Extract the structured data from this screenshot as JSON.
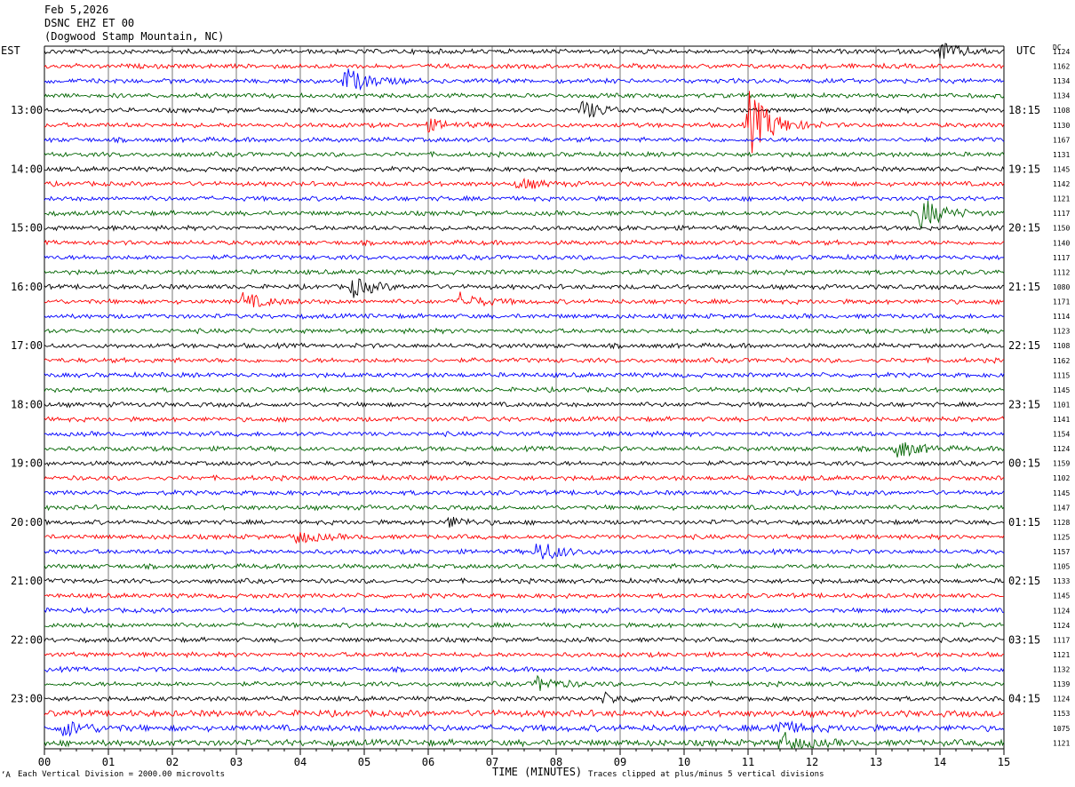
{
  "header": {
    "date": "Feb 5,2026",
    "channel": "DSNC EHZ ET 00",
    "location": "(Dogwood Stamp Mountain, NC)"
  },
  "left_tz": "EST",
  "right_tz": "UTC",
  "dc_label": "DC",
  "footer": {
    "scale": "Each Vertical Division = 2000.00 microvolts",
    "clip": "Traces clipped at plus/minus 5 vertical divisions",
    "marker": "‘A"
  },
  "chart_data": {
    "type": "line",
    "title": "DSNC EHZ ET 00",
    "xlabel": "TIME (MINUTES)",
    "x_ticks": [
      "00",
      "01",
      "02",
      "03",
      "04",
      "05",
      "06",
      "07",
      "08",
      "09",
      "10",
      "11",
      "12",
      "13",
      "14",
      "15"
    ],
    "xlim": [
      0,
      15
    ],
    "trace_colors": [
      "#000000",
      "#ff0000",
      "#0000ff",
      "#006400"
    ],
    "left_hour_labels": [
      "13:00",
      "14:00",
      "15:00",
      "16:00",
      "17:00",
      "18:00",
      "19:00",
      "20:00",
      "21:00",
      "22:00",
      "23:00"
    ],
    "right_hour_labels": [
      "18:15",
      "19:15",
      "20:15",
      "21:15",
      "22:15",
      "23:15",
      "00:15",
      "01:15",
      "02:15",
      "03:15",
      "04:15"
    ],
    "dc_values": [
      1124,
      1162,
      1134,
      1134,
      1108,
      1130,
      1167,
      1131,
      1145,
      1142,
      1121,
      1117,
      1150,
      1140,
      1117,
      1112,
      1080,
      1171,
      1114,
      1123,
      1108,
      1162,
      1115,
      1145,
      1101,
      1141,
      1154,
      1124,
      1159,
      1102,
      1145,
      1147,
      1128,
      1125,
      1157,
      1105,
      1133,
      1145,
      1124,
      1124,
      1117,
      1121,
      1132,
      1139,
      1124,
      1153,
      1075,
      1121
    ],
    "events": [
      {
        "row": 0,
        "minute": 14.0,
        "amplitude": 10
      },
      {
        "row": 2,
        "minute": 4.7,
        "amplitude": 15
      },
      {
        "row": 4,
        "minute": 8.4,
        "amplitude": 11
      },
      {
        "row": 5,
        "minute": 11.0,
        "amplitude": 40
      },
      {
        "row": 5,
        "minute": 6.0,
        "amplitude": 6
      },
      {
        "row": 9,
        "minute": 7.4,
        "amplitude": 6
      },
      {
        "row": 11,
        "minute": 13.7,
        "amplitude": 18
      },
      {
        "row": 16,
        "minute": 4.8,
        "amplitude": 11
      },
      {
        "row": 17,
        "minute": 3.1,
        "amplitude": 9
      },
      {
        "row": 17,
        "minute": 6.5,
        "amplitude": 9
      },
      {
        "row": 27,
        "minute": 13.3,
        "amplitude": 11
      },
      {
        "row": 32,
        "minute": 6.3,
        "amplitude": 6
      },
      {
        "row": 33,
        "minute": 3.9,
        "amplitude": 8
      },
      {
        "row": 34,
        "minute": 7.7,
        "amplitude": 13
      },
      {
        "row": 43,
        "minute": 7.7,
        "amplitude": 8
      },
      {
        "row": 44,
        "minute": 8.7,
        "amplitude": 6
      },
      {
        "row": 46,
        "minute": 0.3,
        "amplitude": 9
      },
      {
        "row": 46,
        "minute": 11.4,
        "amplitude": 9
      },
      {
        "row": 47,
        "minute": 11.5,
        "amplitude": 11
      }
    ]
  }
}
